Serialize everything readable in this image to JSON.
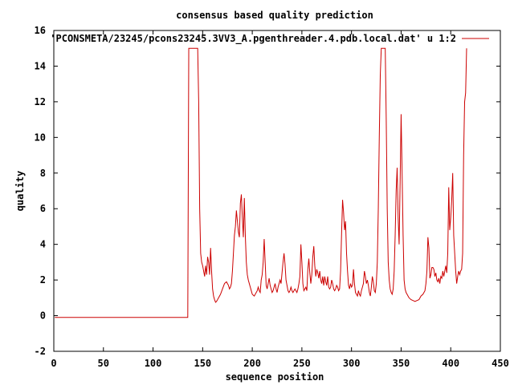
{
  "chart_data": {
    "type": "line",
    "title": "consensus based quality prediction",
    "xlabel": "sequence position",
    "ylabel": "quality",
    "xlim": [
      0,
      450
    ],
    "ylim": [
      -2,
      16
    ],
    "xticks": [
      0,
      50,
      100,
      150,
      200,
      250,
      300,
      350,
      400,
      450
    ],
    "yticks": [
      -2,
      0,
      2,
      4,
      6,
      8,
      10,
      12,
      14,
      16
    ],
    "grid": false,
    "legend_position": "top-right",
    "series": [
      {
        "name": "'PCONSMETA/23245/pcons23245.3VV3_A.pgenthreader.4.pdb.local.dat' u 1:2",
        "color": "#cc0000",
        "points": [
          [
            1,
            -0.1
          ],
          [
            134,
            -0.1
          ],
          [
            135,
            -0.1
          ],
          [
            136,
            15
          ],
          [
            145,
            15
          ],
          [
            146,
            12
          ],
          [
            147,
            6
          ],
          [
            148,
            3.5
          ],
          [
            149,
            3
          ],
          [
            150,
            2.8
          ],
          [
            151,
            2.5
          ],
          [
            152,
            2.2
          ],
          [
            153,
            2.8
          ],
          [
            154,
            2.3
          ],
          [
            155,
            3.3
          ],
          [
            156,
            3
          ],
          [
            157,
            2.3
          ],
          [
            158,
            3.8
          ],
          [
            159,
            2.5
          ],
          [
            160,
            1.5
          ],
          [
            161,
            1.1
          ],
          [
            162,
            0.9
          ],
          [
            163,
            0.75
          ],
          [
            164,
            0.8
          ],
          [
            165,
            0.9
          ],
          [
            166,
            1
          ],
          [
            168,
            1.2
          ],
          [
            170,
            1.5
          ],
          [
            172,
            1.8
          ],
          [
            174,
            1.9
          ],
          [
            176,
            1.7
          ],
          [
            177,
            1.5
          ],
          [
            178,
            1.6
          ],
          [
            179,
            1.8
          ],
          [
            180,
            2.5
          ],
          [
            181,
            3.5
          ],
          [
            182,
            4.5
          ],
          [
            183,
            5
          ],
          [
            184,
            5.9
          ],
          [
            185,
            5.3
          ],
          [
            186,
            4.7
          ],
          [
            187,
            4.4
          ],
          [
            188,
            6.3
          ],
          [
            189,
            6.8
          ],
          [
            190,
            5.5
          ],
          [
            191,
            4.4
          ],
          [
            192,
            6.6
          ],
          [
            193,
            4.5
          ],
          [
            194,
            3
          ],
          [
            195,
            2.3
          ],
          [
            196,
            2
          ],
          [
            197,
            1.8
          ],
          [
            198,
            1.6
          ],
          [
            199,
            1.4
          ],
          [
            200,
            1.2
          ],
          [
            201,
            1.15
          ],
          [
            202,
            1.1
          ],
          [
            203,
            1.2
          ],
          [
            205,
            1.4
          ],
          [
            206,
            1.6
          ],
          [
            207,
            1.4
          ],
          [
            208,
            1.3
          ],
          [
            209,
            2
          ],
          [
            210,
            2.3
          ],
          [
            211,
            3
          ],
          [
            212,
            4.3
          ],
          [
            213,
            3
          ],
          [
            214,
            1.7
          ],
          [
            215,
            1.5
          ],
          [
            216,
            1.8
          ],
          [
            217,
            2.1
          ],
          [
            218,
            1.7
          ],
          [
            219,
            1.5
          ],
          [
            220,
            1.3
          ],
          [
            221,
            1.4
          ],
          [
            222,
            1.6
          ],
          [
            223,
            1.8
          ],
          [
            224,
            1.5
          ],
          [
            225,
            1.3
          ],
          [
            226,
            1.6
          ],
          [
            227,
            1.8
          ],
          [
            228,
            2
          ],
          [
            229,
            1.8
          ],
          [
            230,
            2.4
          ],
          [
            231,
            3
          ],
          [
            232,
            3.5
          ],
          [
            233,
            2.9
          ],
          [
            234,
            2
          ],
          [
            235,
            1.7
          ],
          [
            236,
            1.4
          ],
          [
            237,
            1.3
          ],
          [
            238,
            1.4
          ],
          [
            239,
            1.6
          ],
          [
            240,
            1.4
          ],
          [
            241,
            1.3
          ],
          [
            242,
            1.4
          ],
          [
            243,
            1.5
          ],
          [
            244,
            1.4
          ],
          [
            245,
            1.3
          ],
          [
            246,
            1.5
          ],
          [
            247,
            1.8
          ],
          [
            248,
            2.2
          ],
          [
            249,
            4
          ],
          [
            250,
            3
          ],
          [
            251,
            1.8
          ],
          [
            252,
            1.4
          ],
          [
            253,
            1.5
          ],
          [
            254,
            1.6
          ],
          [
            255,
            1.4
          ],
          [
            256,
            2.6
          ],
          [
            257,
            3.2
          ],
          [
            258,
            2.4
          ],
          [
            259,
            1.8
          ],
          [
            260,
            2.3
          ],
          [
            261,
            3.3
          ],
          [
            262,
            3.9
          ],
          [
            263,
            2.8
          ],
          [
            264,
            2.2
          ],
          [
            265,
            2.6
          ],
          [
            266,
            2.4
          ],
          [
            267,
            2.1
          ],
          [
            268,
            2.5
          ],
          [
            269,
            2
          ],
          [
            270,
            1.8
          ],
          [
            271,
            2.2
          ],
          [
            272,
            1.7
          ],
          [
            273,
            2.2
          ],
          [
            274,
            1.9
          ],
          [
            275,
            1.7
          ],
          [
            276,
            2.2
          ],
          [
            277,
            1.6
          ],
          [
            278,
            1.5
          ],
          [
            279,
            1.6
          ],
          [
            280,
            2
          ],
          [
            281,
            1.8
          ],
          [
            282,
            1.5
          ],
          [
            283,
            1.4
          ],
          [
            284,
            1.5
          ],
          [
            285,
            1.7
          ],
          [
            286,
            1.6
          ],
          [
            287,
            1.4
          ],
          [
            288,
            1.5
          ],
          [
            289,
            2.5
          ],
          [
            290,
            4.6
          ],
          [
            291,
            6.5
          ],
          [
            292,
            5.8
          ],
          [
            293,
            4.8
          ],
          [
            294,
            5.3
          ],
          [
            295,
            3.5
          ],
          [
            296,
            2.5
          ],
          [
            297,
            1.7
          ],
          [
            298,
            1.5
          ],
          [
            299,
            1.8
          ],
          [
            300,
            1.6
          ],
          [
            301,
            1.7
          ],
          [
            302,
            2.6
          ],
          [
            303,
            1.8
          ],
          [
            304,
            1.3
          ],
          [
            305,
            1.2
          ],
          [
            306,
            1.1
          ],
          [
            307,
            1.4
          ],
          [
            308,
            1.2
          ],
          [
            309,
            1.1
          ],
          [
            310,
            1.4
          ],
          [
            311,
            1.6
          ],
          [
            312,
            1.8
          ],
          [
            313,
            2.5
          ],
          [
            314,
            2.2
          ],
          [
            315,
            1.8
          ],
          [
            316,
            2
          ],
          [
            317,
            1.7
          ],
          [
            318,
            1.3
          ],
          [
            319,
            1.1
          ],
          [
            320,
            1.6
          ],
          [
            321,
            2.2
          ],
          [
            322,
            1.9
          ],
          [
            323,
            1.4
          ],
          [
            324,
            1.3
          ],
          [
            325,
            1.8
          ],
          [
            326,
            3
          ],
          [
            327,
            6
          ],
          [
            328,
            10
          ],
          [
            329,
            13.5
          ],
          [
            330,
            15
          ],
          [
            334,
            15
          ],
          [
            335,
            11
          ],
          [
            336,
            6
          ],
          [
            337,
            3
          ],
          [
            338,
            2
          ],
          [
            339,
            1.5
          ],
          [
            340,
            1.3
          ],
          [
            341,
            1.2
          ],
          [
            342,
            1.5
          ],
          [
            343,
            2.5
          ],
          [
            344,
            4.5
          ],
          [
            345,
            7
          ],
          [
            346,
            8.3
          ],
          [
            347,
            5.5
          ],
          [
            348,
            4
          ],
          [
            349,
            7.5
          ],
          [
            350,
            11.3
          ],
          [
            351,
            8
          ],
          [
            352,
            4.5
          ],
          [
            353,
            2
          ],
          [
            354,
            1.5
          ],
          [
            355,
            1.3
          ],
          [
            356,
            1.2
          ],
          [
            357,
            1.1
          ],
          [
            358,
            1
          ],
          [
            359,
            0.95
          ],
          [
            360,
            0.9
          ],
          [
            362,
            0.85
          ],
          [
            364,
            0.8
          ],
          [
            366,
            0.85
          ],
          [
            368,
            0.9
          ],
          [
            370,
            1.1
          ],
          [
            372,
            1.2
          ],
          [
            374,
            1.4
          ],
          [
            375,
            1.8
          ],
          [
            376,
            2.5
          ],
          [
            377,
            4.4
          ],
          [
            378,
            3.8
          ],
          [
            379,
            2.1
          ],
          [
            380,
            2.3
          ],
          [
            381,
            2.7
          ],
          [
            382,
            2.7
          ],
          [
            383,
            2.6
          ],
          [
            384,
            2.2
          ],
          [
            385,
            2.4
          ],
          [
            386,
            2
          ],
          [
            387,
            1.9
          ],
          [
            388,
            2.1
          ],
          [
            389,
            1.8
          ],
          [
            390,
            2.2
          ],
          [
            391,
            2.1
          ],
          [
            392,
            2.5
          ],
          [
            393,
            2.2
          ],
          [
            394,
            2.5
          ],
          [
            395,
            2.8
          ],
          [
            396,
            2.4
          ],
          [
            397,
            3.5
          ],
          [
            398,
            7.2
          ],
          [
            399,
            4.8
          ],
          [
            400,
            5.5
          ],
          [
            401,
            6.5
          ],
          [
            402,
            8
          ],
          [
            403,
            4.5
          ],
          [
            404,
            3.5
          ],
          [
            405,
            2.5
          ],
          [
            406,
            1.8
          ],
          [
            407,
            2.2
          ],
          [
            408,
            2.5
          ],
          [
            409,
            2.3
          ],
          [
            410,
            2.5
          ],
          [
            411,
            2.6
          ],
          [
            412,
            3.5
          ],
          [
            413,
            9
          ],
          [
            414,
            12
          ],
          [
            415,
            12.5
          ],
          [
            416,
            15
          ]
        ]
      }
    ]
  }
}
